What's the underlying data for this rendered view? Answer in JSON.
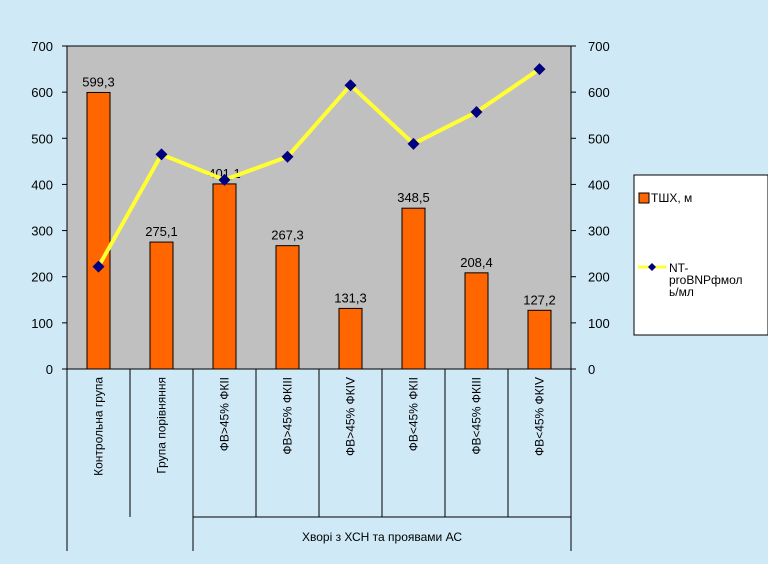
{
  "chart_data": {
    "type": "bar",
    "categories": [
      "Контрольна група",
      "Група порівняння",
      "ФВ>45% ФКІІ",
      "ФВ>45% ФКІІІ",
      "ФВ>45% ФКІV",
      "ФВ<45% ФКІІ",
      "ФВ<45% ФКІІІ",
      "ФВ<45% ФКІV"
    ],
    "group_label": "Хворі з ХСН та проявами АС",
    "series": [
      {
        "name": "ТШХ, м",
        "type": "bar",
        "axis": "left",
        "color": "#ff6600",
        "values": [
          599.3,
          275.1,
          401.1,
          267.3,
          131.3,
          348.5,
          208.4,
          127.2
        ],
        "value_labels": [
          "599,3",
          "275,1",
          "401,1",
          "267,3",
          "131,3",
          "348,5",
          "208,4",
          "127,2"
        ]
      },
      {
        "name": "NT-proBNPфмоль/мл",
        "name_lines": [
          "NT-",
          "proBNPфмол",
          "ь/мл"
        ],
        "type": "line",
        "axis": "right",
        "color": "#ffff33",
        "marker_color": "#000080",
        "values": [
          222,
          465,
          410,
          460,
          615,
          488,
          557,
          650
        ]
      }
    ],
    "y_left": {
      "min": 0,
      "max": 700,
      "ticks": [
        0,
        100,
        200,
        300,
        400,
        500,
        600,
        700
      ]
    },
    "y_right": {
      "min": 0,
      "max": 700,
      "ticks": [
        0,
        100,
        200,
        300,
        400,
        500,
        600,
        700
      ]
    },
    "plot_background": "#c0c0c0",
    "legend_position": "right",
    "grid": false
  }
}
